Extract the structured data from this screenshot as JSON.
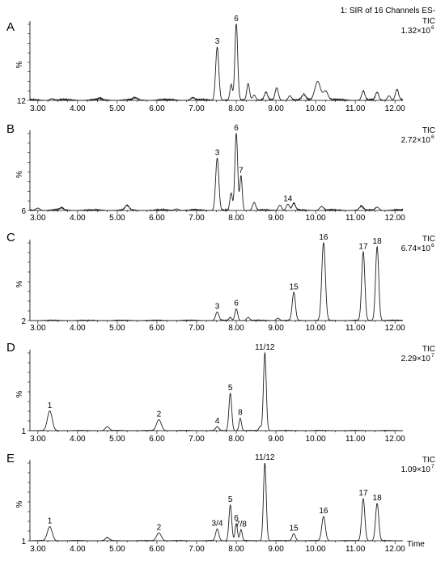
{
  "figure": {
    "header_text": "1: SIR of 16 Channels ES-",
    "x_axis_unit": "Time",
    "y_axis_symbol": "%"
  },
  "chart_data": [
    {
      "type": "line",
      "panel": "A",
      "trace_label": "TIC",
      "intensity_base": "1.32×10",
      "intensity_exp": "6",
      "baseline_label": "12",
      "xlim": [
        2.8,
        12.2
      ],
      "xticks": [
        "3.00",
        "4.00",
        "5.00",
        "6.00",
        "7.00",
        "8.00",
        "9.00",
        "10.00",
        "11.00",
        "12.00"
      ],
      "noise": 2,
      "peaks": [
        {
          "rt": 3.35,
          "h": 2,
          "w": 0.05,
          "label": ""
        },
        {
          "rt": 4.55,
          "h": 2,
          "w": 0.05,
          "label": ""
        },
        {
          "rt": 5.45,
          "h": 3,
          "w": 0.05,
          "label": ""
        },
        {
          "rt": 6.9,
          "h": 3,
          "w": 0.05,
          "label": ""
        },
        {
          "rt": 7.52,
          "h": 70,
          "w": 0.04,
          "label": "3"
        },
        {
          "rt": 7.87,
          "h": 20,
          "w": 0.03,
          "label": ""
        },
        {
          "rt": 8.0,
          "h": 100,
          "w": 0.035,
          "label": "6"
        },
        {
          "rt": 8.3,
          "h": 22,
          "w": 0.035,
          "label": ""
        },
        {
          "rt": 8.45,
          "h": 7,
          "w": 0.04,
          "label": ""
        },
        {
          "rt": 8.75,
          "h": 10,
          "w": 0.04,
          "label": ""
        },
        {
          "rt": 9.02,
          "h": 16,
          "w": 0.04,
          "label": ""
        },
        {
          "rt": 9.35,
          "h": 6,
          "w": 0.04,
          "label": ""
        },
        {
          "rt": 9.7,
          "h": 7,
          "w": 0.05,
          "label": ""
        },
        {
          "rt": 10.05,
          "h": 25,
          "w": 0.07,
          "label": ""
        },
        {
          "rt": 10.25,
          "h": 12,
          "w": 0.06,
          "label": ""
        },
        {
          "rt": 11.2,
          "h": 12,
          "w": 0.04,
          "label": ""
        },
        {
          "rt": 11.55,
          "h": 10,
          "w": 0.04,
          "label": ""
        },
        {
          "rt": 11.85,
          "h": 6,
          "w": 0.04,
          "label": ""
        },
        {
          "rt": 12.05,
          "h": 14,
          "w": 0.04,
          "label": ""
        }
      ]
    },
    {
      "type": "line",
      "panel": "B",
      "trace_label": "TIC",
      "intensity_base": "2.72×10",
      "intensity_exp": "6",
      "baseline_label": "6",
      "xlim": [
        2.8,
        12.2
      ],
      "xticks": [
        "3.00",
        "4.00",
        "5.00",
        "6.00",
        "7.00",
        "8.00",
        "9.00",
        "10.00",
        "11.00",
        "12.00"
      ],
      "noise": 1.5,
      "peaks": [
        {
          "rt": 3.0,
          "h": 3,
          "w": 0.05,
          "label": ""
        },
        {
          "rt": 3.6,
          "h": 3,
          "w": 0.05,
          "label": ""
        },
        {
          "rt": 5.25,
          "h": 6,
          "w": 0.05,
          "label": ""
        },
        {
          "rt": 6.5,
          "h": 2,
          "w": 0.05,
          "label": ""
        },
        {
          "rt": 7.52,
          "h": 68,
          "w": 0.04,
          "label": "3"
        },
        {
          "rt": 7.87,
          "h": 22,
          "w": 0.03,
          "label": ""
        },
        {
          "rt": 8.0,
          "h": 100,
          "w": 0.035,
          "label": "6"
        },
        {
          "rt": 8.12,
          "h": 45,
          "w": 0.03,
          "label": "7"
        },
        {
          "rt": 8.45,
          "h": 10,
          "w": 0.04,
          "label": ""
        },
        {
          "rt": 9.1,
          "h": 7,
          "w": 0.04,
          "label": ""
        },
        {
          "rt": 9.3,
          "h": 8,
          "w": 0.04,
          "label": "14"
        },
        {
          "rt": 9.45,
          "h": 9,
          "w": 0.04,
          "label": ""
        },
        {
          "rt": 10.15,
          "h": 5,
          "w": 0.05,
          "label": ""
        },
        {
          "rt": 11.15,
          "h": 5,
          "w": 0.05,
          "label": ""
        },
        {
          "rt": 11.55,
          "h": 4,
          "w": 0.05,
          "label": ""
        }
      ]
    },
    {
      "type": "line",
      "panel": "C",
      "trace_label": "TIC",
      "intensity_base": "6.74×10",
      "intensity_exp": "6",
      "baseline_label": "2",
      "xlim": [
        2.8,
        12.2
      ],
      "xticks": [
        "3.00",
        "4.00",
        "5.00",
        "6.00",
        "7.00",
        "8.00",
        "9.00",
        "10.00",
        "11.00",
        "12.00"
      ],
      "noise": 0.8,
      "peaks": [
        {
          "rt": 7.52,
          "h": 11,
          "w": 0.04,
          "label": "3"
        },
        {
          "rt": 7.85,
          "h": 4,
          "w": 0.03,
          "label": ""
        },
        {
          "rt": 8.0,
          "h": 15,
          "w": 0.035,
          "label": "6"
        },
        {
          "rt": 8.3,
          "h": 4,
          "w": 0.04,
          "label": ""
        },
        {
          "rt": 9.05,
          "h": 3,
          "w": 0.04,
          "label": ""
        },
        {
          "rt": 9.45,
          "h": 36,
          "w": 0.04,
          "label": "15"
        },
        {
          "rt": 10.2,
          "h": 100,
          "w": 0.045,
          "label": "16"
        },
        {
          "rt": 11.2,
          "h": 88,
          "w": 0.04,
          "label": "17"
        },
        {
          "rt": 11.55,
          "h": 95,
          "w": 0.04,
          "label": "18"
        }
      ]
    },
    {
      "type": "line",
      "panel": "D",
      "trace_label": "TIC",
      "intensity_base": "2.29×10",
      "intensity_exp": "7",
      "baseline_label": "1",
      "xlim": [
        2.8,
        12.2
      ],
      "xticks": [
        "3.00",
        "4.00",
        "5.00",
        "6.00",
        "7.00",
        "8.00",
        "9.00",
        "10.00",
        "11.00",
        "12.00"
      ],
      "noise": 0.5,
      "peaks": [
        {
          "rt": 3.3,
          "h": 25,
          "w": 0.06,
          "label": "1"
        },
        {
          "rt": 4.75,
          "h": 5,
          "w": 0.05,
          "label": ""
        },
        {
          "rt": 6.05,
          "h": 14,
          "w": 0.06,
          "label": "2"
        },
        {
          "rt": 7.52,
          "h": 5,
          "w": 0.04,
          "label": "4"
        },
        {
          "rt": 7.85,
          "h": 48,
          "w": 0.035,
          "label": "5"
        },
        {
          "rt": 8.1,
          "h": 16,
          "w": 0.03,
          "label": "8"
        },
        {
          "rt": 8.6,
          "h": 5,
          "w": 0.03,
          "label": ""
        },
        {
          "rt": 8.72,
          "h": 100,
          "w": 0.035,
          "label": "11/12"
        }
      ]
    },
    {
      "type": "line",
      "panel": "E",
      "trace_label": "TIC",
      "intensity_base": "1.09×10",
      "intensity_exp": "7",
      "baseline_label": "1",
      "xlim": [
        2.8,
        12.2
      ],
      "xticks": [
        "3.00",
        "4.00",
        "5.00",
        "6.00",
        "7.00",
        "8.00",
        "9.00",
        "10.00",
        "11.00",
        "12.00"
      ],
      "noise": 0.5,
      "peaks": [
        {
          "rt": 3.3,
          "h": 18,
          "w": 0.06,
          "label": "1"
        },
        {
          "rt": 4.75,
          "h": 4,
          "w": 0.05,
          "label": ""
        },
        {
          "rt": 6.05,
          "h": 10,
          "w": 0.06,
          "label": "2"
        },
        {
          "rt": 7.52,
          "h": 15,
          "w": 0.04,
          "label": "3/4"
        },
        {
          "rt": 7.85,
          "h": 46,
          "w": 0.035,
          "label": "5"
        },
        {
          "rt": 8.0,
          "h": 22,
          "w": 0.03,
          "label": "6"
        },
        {
          "rt": 8.12,
          "h": 14,
          "w": 0.03,
          "label": "7/8"
        },
        {
          "rt": 8.72,
          "h": 100,
          "w": 0.035,
          "label": "11/12"
        },
        {
          "rt": 9.45,
          "h": 9,
          "w": 0.04,
          "label": "15"
        },
        {
          "rt": 10.2,
          "h": 31,
          "w": 0.045,
          "label": "16"
        },
        {
          "rt": 11.2,
          "h": 54,
          "w": 0.04,
          "label": "17"
        },
        {
          "rt": 11.55,
          "h": 48,
          "w": 0.04,
          "label": "18"
        }
      ]
    }
  ]
}
